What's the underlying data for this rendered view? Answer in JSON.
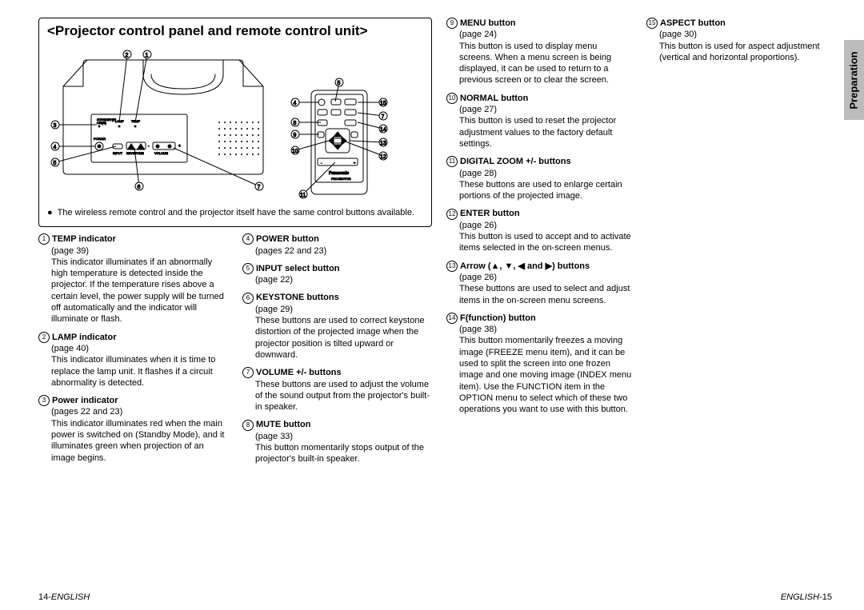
{
  "side_tab": "Preparation",
  "diagram_title": "<Projector control panel and remote control unit>",
  "diagram_note": "The wireless remote control and the projector itself have the same control buttons available.",
  "panel_labels": {
    "standbyr": "STANDBY(R)",
    "ong": "ON(G)",
    "lamp": "LAMP",
    "temp": "TEMP",
    "power": "POWER",
    "input": "INPUT",
    "keystone": "KEYSTONE",
    "volume": "VOLUME",
    "remote_brand": "Panasonic",
    "remote_model": "PROJECTOR"
  },
  "footer_left_num": "14-",
  "footer_left_text": "ENGLISH",
  "footer_right_text": "ENGLISH",
  "footer_right_num": "-15",
  "items": [
    {
      "n": "1",
      "title": "TEMP indicator",
      "page": "(page 39)",
      "desc": "This indicator illuminates if an abnormally high temperature is detected inside the projector. If the temperature rises above a certain level, the power supply will be turned off automatically and the indicator will illuminate or flash."
    },
    {
      "n": "2",
      "title": "LAMP indicator",
      "page": "(page 40)",
      "desc": "This indicator illuminates when it is time to replace the lamp unit. It flashes if a circuit abnormality is detected."
    },
    {
      "n": "3",
      "title": "Power indicator",
      "page": "(pages 22 and 23)",
      "desc": "This indicator illuminates red when the main power is switched on (Standby Mode), and it illuminates green when projection of an image begins."
    },
    {
      "n": "4",
      "title": "POWER button",
      "page": "(pages 22 and 23)",
      "desc": ""
    },
    {
      "n": "5",
      "title": "INPUT select button",
      "page": "(page 22)",
      "desc": ""
    },
    {
      "n": "6",
      "title": "KEYSTONE buttons",
      "page": "(page 29)",
      "desc": "These buttons are used to correct keystone distortion of the projected image when the projector position is tilted upward or downward."
    },
    {
      "n": "7",
      "title": "VOLUME +/- buttons",
      "page": "",
      "desc": "These buttons are used to adjust the volume of the sound output from the projector's built-in speaker."
    },
    {
      "n": "8",
      "title": "MUTE button",
      "page": "(page 33)",
      "desc": "This button momentarily stops output of the projector's built-in speaker."
    },
    {
      "n": "9",
      "title": "MENU button",
      "page": "(page 24)",
      "desc": "This button is used to display menu screens. When a menu screen is being displayed, it can be used to return to a previous screen or to clear the screen."
    },
    {
      "n": "10",
      "title": "NORMAL button",
      "page": "(page 27)",
      "desc": "This button is used to reset the projector adjustment values to the factory default settings."
    },
    {
      "n": "11",
      "title": "DIGITAL ZOOM +/- buttons",
      "page": "(page 28)",
      "desc": "These buttons are used to enlarge certain portions of the projected image."
    },
    {
      "n": "12",
      "title": "ENTER button",
      "page": "(page 26)",
      "desc": "This button is used to accept and to activate items selected in the on-screen menus."
    },
    {
      "n": "13",
      "title": "Arrow (▲, ▼, ◀ and ▶) buttons",
      "page": "(page 26)",
      "desc": "These buttons are used to select and adjust items in the on-screen menu screens."
    },
    {
      "n": "14",
      "title": "F(function) button",
      "page": "(page 38)",
      "desc": "This button momentarily freezes a moving image (FREEZE menu item), and it can be used to split the screen into one frozen image and one moving image (INDEX menu item). Use the FUNCTION item in the OPTION menu to select which of these two operations you want to use with this button."
    },
    {
      "n": "15",
      "title": "ASPECT button",
      "page": "(page 30)",
      "desc": "This button is used for aspect adjustment (vertical and horizontal proportions)."
    }
  ],
  "colors": {
    "text": "#000000",
    "bg": "#ffffff",
    "tab_bg": "#bcbcbc",
    "border": "#000000"
  },
  "layout": {
    "columns": [
      [
        0,
        1,
        2
      ],
      [
        3,
        4,
        5,
        6,
        7
      ],
      [
        8,
        9,
        10,
        11,
        12,
        13
      ],
      [
        14
      ]
    ]
  }
}
